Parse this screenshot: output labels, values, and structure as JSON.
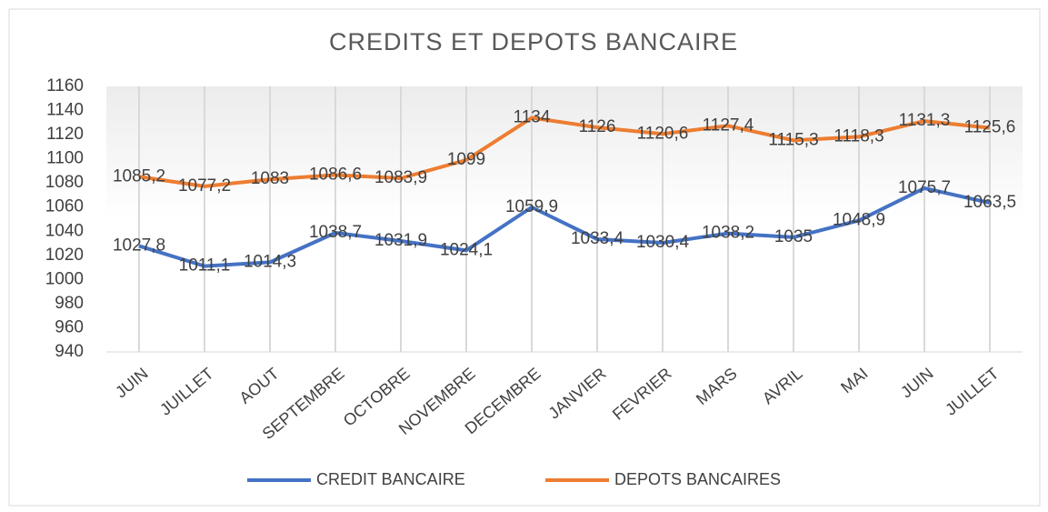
{
  "chart_data": {
    "type": "line",
    "title": "CREDITS ET DEPOTS BANCAIRE",
    "categories": [
      "JUIN",
      "JUILLET",
      "AOUT",
      "SEPTEMBRE",
      "OCTOBRE",
      "NOVEMBRE",
      "DECEMBRE",
      "JANVIER",
      "FEVRIER",
      "MARS",
      "AVRIL",
      "MAI",
      "JUIN",
      "JUILLET"
    ],
    "series": [
      {
        "name": "CREDIT BANCAIRE",
        "color": "#4472c4",
        "values": [
          1027.8,
          1011.1,
          1014.3,
          1038.7,
          1031.9,
          1024.1,
          1059.9,
          1033.4,
          1030.4,
          1038.2,
          1035,
          1048.9,
          1075.7,
          1063.5
        ],
        "value_labels": [
          "1027,8",
          "1011,1",
          "1014,3",
          "1038,7",
          "1031,9",
          "1024,1",
          "1059,9",
          "1033,4",
          "1030,4",
          "1038,2",
          "1035",
          "1048,9",
          "1075,7",
          "1063,5"
        ]
      },
      {
        "name": "DEPOTS BANCAIRES",
        "color": "#ed7d31",
        "values": [
          1085.2,
          1077.2,
          1083,
          1086.6,
          1083.9,
          1099,
          1134,
          1126,
          1120.6,
          1127.4,
          1115.3,
          1118.3,
          1131.3,
          1125.6
        ],
        "value_labels": [
          "1085,2",
          "1077,2",
          "1083",
          "1086,6",
          "1083,9",
          "1099",
          "1134",
          "1126",
          "1120,6",
          "1127,4",
          "1115,3",
          "1118,3",
          "1131,3",
          "1125,6"
        ]
      }
    ],
    "ylim": [
      940,
      1160
    ],
    "yticks": [
      940,
      960,
      980,
      1000,
      1020,
      1040,
      1060,
      1080,
      1100,
      1120,
      1140,
      1160
    ],
    "grid": "x",
    "legend": "bottom"
  }
}
